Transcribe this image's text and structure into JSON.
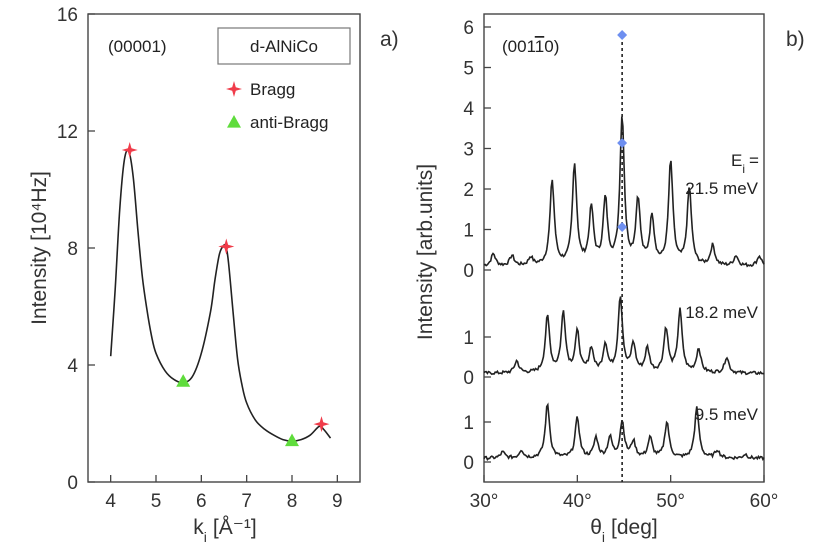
{
  "chart_data": [
    {
      "panel": "a)",
      "type": "line",
      "annotation": "(00001)",
      "sample_label": "d-AlNiCo",
      "xlabel_main": "k",
      "xlabel_sub": "i",
      "xlabel_unit": "[Å⁻¹]",
      "ylabel": "Intensity [10⁴Hz]",
      "xlim": [
        3.5,
        9.5
      ],
      "ylim": [
        0,
        16
      ],
      "xticks": [
        "4",
        "5",
        "6",
        "7",
        "8",
        "9"
      ],
      "yticks": [
        "0",
        "4",
        "8",
        "12",
        "16"
      ],
      "grid": false,
      "legend_position": "top-right",
      "series": [
        {
          "x": [
            4.0,
            4.1,
            4.2,
            4.3,
            4.4,
            4.5,
            4.6,
            4.7,
            4.8,
            4.9,
            5.0,
            5.2,
            5.4,
            5.6,
            5.8,
            6.0,
            6.2,
            6.3,
            6.4,
            6.5,
            6.55,
            6.6,
            6.7,
            6.8,
            6.9,
            7.0,
            7.2,
            7.4,
            7.6,
            7.8,
            8.0,
            8.2,
            8.4,
            8.6,
            8.7,
            8.85
          ],
          "y": [
            4.3,
            6.6,
            9.3,
            11.0,
            11.3,
            10.4,
            8.6,
            7.0,
            5.9,
            5.0,
            4.4,
            3.8,
            3.5,
            3.4,
            3.6,
            4.4,
            5.8,
            6.9,
            7.8,
            8.1,
            8.0,
            7.5,
            5.8,
            4.2,
            3.3,
            2.7,
            2.1,
            1.8,
            1.6,
            1.45,
            1.4,
            1.45,
            1.6,
            1.9,
            1.8,
            1.5
          ]
        }
      ],
      "markers": [
        {
          "name": "Bragg",
          "color": "#f03c4a",
          "shape": "star",
          "points": [
            {
              "x": 4.42,
              "y": 11.35
            },
            {
              "x": 6.55,
              "y": 8.05
            },
            {
              "x": 8.65,
              "y": 1.98
            }
          ]
        },
        {
          "name": "anti-Bragg",
          "color": "#5fdc3c",
          "shape": "triangle",
          "points": [
            {
              "x": 5.6,
              "y": 3.45
            },
            {
              "x": 8.0,
              "y": 1.42
            }
          ]
        }
      ]
    },
    {
      "panel": "b)",
      "type": "line",
      "annotation_prefix": "(001",
      "annotation_overbar": "1",
      "annotation_suffix": "0)",
      "xlabel_main": "θ",
      "xlabel_sub": "i",
      "xlabel_unit": "[deg]",
      "ylabel": "Intensity [arb.units]",
      "xlim": [
        30,
        60
      ],
      "ylim": [
        -0.3,
        6.2
      ],
      "xticks": [
        "30°",
        "40°",
        "50°",
        "60°"
      ],
      "yticks": [
        "0",
        "1",
        "2",
        "3",
        "4",
        "5",
        "6"
      ],
      "lower_yticks": [
        "0",
        "1"
      ],
      "grid": false,
      "ei_label": "E",
      "ei_sub": "i",
      "ei_eq": "=",
      "dashed_line_x": 44.8,
      "marker_color": "#6e8ff0",
      "series": [
        {
          "name": "21.5 meV",
          "offset": 2.15,
          "peaks": [
            [
              31,
              0.3
            ],
            [
              33,
              0.25
            ],
            [
              35,
              0.2
            ],
            [
              37.3,
              2.1
            ],
            [
              39.7,
              2.5
            ],
            [
              41.5,
              1.4
            ],
            [
              43,
              1.6
            ],
            [
              44.8,
              3.65
            ],
            [
              46.5,
              1.6
            ],
            [
              48,
              1.2
            ],
            [
              50,
              2.55
            ],
            [
              52,
              1.9
            ],
            [
              54.5,
              0.5
            ],
            [
              57,
              0.25
            ],
            [
              59.5,
              0.25
            ]
          ],
          "marker_y": 3.2
        },
        {
          "name": "18.2 meV",
          "offset": 1.1,
          "peaks": [
            [
              33.5,
              0.3
            ],
            [
              36.8,
              1.4
            ],
            [
              38.5,
              1.5
            ],
            [
              40,
              1.0
            ],
            [
              41.5,
              0.6
            ],
            [
              43,
              0.7
            ],
            [
              44.6,
              1.9
            ],
            [
              46,
              0.7
            ],
            [
              47.5,
              0.6
            ],
            [
              49.5,
              1.1
            ],
            [
              51,
              1.55
            ],
            [
              53,
              0.6
            ],
            [
              56,
              0.4
            ]
          ],
          "marker_y": 1.15
        },
        {
          "name": "9.5 meV",
          "offset": 0.15,
          "peaks": [
            [
              32,
              0.15
            ],
            [
              34,
              0.2
            ],
            [
              36.8,
              1.35
            ],
            [
              40,
              1.0
            ],
            [
              42,
              0.5
            ],
            [
              43.5,
              0.5
            ],
            [
              44.8,
              0.9
            ],
            [
              46,
              0.4
            ],
            [
              47.8,
              0.5
            ],
            [
              49.6,
              0.9
            ],
            [
              52.8,
              1.25
            ],
            [
              55,
              0.2
            ],
            [
              58,
              0.1
            ]
          ],
          "marker_y": null
        }
      ]
    }
  ]
}
